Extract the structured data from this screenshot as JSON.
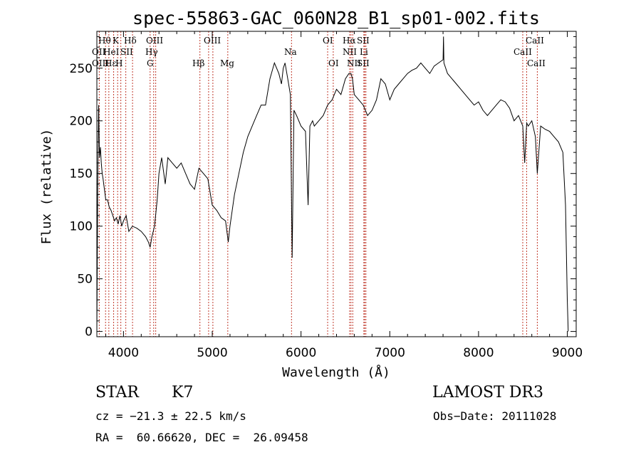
{
  "chart_data": {
    "type": "line",
    "title": "spec-55863-GAC_060N28_B1_sp01-002.fits",
    "xlabel": "Wavelength (Å)",
    "ylabel": "Flux (relative)",
    "xlim": [
      3700,
      9100
    ],
    "ylim": [
      -5,
      285
    ],
    "xticks": [
      4000,
      5000,
      6000,
      7000,
      8000,
      9000
    ],
    "yticks": [
      0,
      50,
      100,
      150,
      200,
      250
    ],
    "grid": false,
    "series": [
      {
        "x": [
          3700,
          3710,
          3720,
          3730,
          3740,
          3750,
          3760,
          3770,
          3780,
          3790,
          3800,
          3820,
          3840,
          3860,
          3880,
          3900,
          3920,
          3940,
          3960,
          3980,
          4000,
          4030,
          4060,
          4100,
          4150,
          4200,
          4250,
          4280,
          4300,
          4320,
          4350,
          4380,
          4400,
          4430,
          4470,
          4500,
          4550,
          4600,
          4650,
          4700,
          4750,
          4800,
          4850,
          4900,
          4950,
          5000,
          5050,
          5100,
          5150,
          5180,
          5200,
          5250,
          5300,
          5350,
          5400,
          5450,
          5500,
          5550,
          5600,
          5650,
          5700,
          5750,
          5780,
          5800,
          5820,
          5850,
          5880,
          5900,
          5920,
          5950,
          6000,
          6050,
          6080,
          6100,
          6130,
          6150,
          6200,
          6250,
          6300,
          6350,
          6400,
          6450,
          6500,
          6540,
          6563,
          6580,
          6600,
          6650,
          6700,
          6750,
          6800,
          6850,
          6900,
          6950,
          7000,
          7050,
          7100,
          7150,
          7200,
          7250,
          7300,
          7350,
          7400,
          7450,
          7500,
          7550,
          7600,
          7605,
          7610,
          7650,
          7700,
          7750,
          7800,
          7850,
          7900,
          7950,
          8000,
          8050,
          8100,
          8150,
          8200,
          8250,
          8300,
          8350,
          8400,
          8450,
          8498,
          8520,
          8542,
          8560,
          8600,
          8640,
          8662,
          8700,
          8750,
          8800,
          8850,
          8900,
          8950,
          8980,
          9000,
          9010
        ],
        "y": [
          0,
          140,
          215,
          165,
          175,
          160,
          150,
          145,
          138,
          132,
          125,
          125,
          118,
          115,
          110,
          105,
          108,
          102,
          110,
          100,
          105,
          110,
          95,
          100,
          98,
          95,
          90,
          85,
          80,
          90,
          100,
          125,
          150,
          165,
          140,
          165,
          160,
          155,
          160,
          150,
          140,
          135,
          155,
          150,
          145,
          120,
          115,
          108,
          105,
          85,
          100,
          130,
          150,
          170,
          185,
          195,
          205,
          215,
          215,
          240,
          255,
          245,
          235,
          250,
          255,
          240,
          225,
          70,
          210,
          205,
          195,
          190,
          120,
          195,
          200,
          195,
          200,
          205,
          215,
          220,
          230,
          225,
          240,
          245,
          245,
          240,
          225,
          220,
          215,
          205,
          210,
          220,
          240,
          235,
          220,
          230,
          235,
          240,
          245,
          248,
          250,
          255,
          250,
          245,
          252,
          255,
          258,
          280,
          255,
          245,
          240,
          235,
          230,
          225,
          220,
          215,
          218,
          210,
          205,
          210,
          215,
          220,
          218,
          212,
          200,
          205,
          195,
          160,
          198,
          195,
          200,
          185,
          150,
          195,
          192,
          190,
          185,
          180,
          170,
          120,
          30,
          0
        ]
      }
    ],
    "annotations": [
      "Hθ",
      "K",
      "Hδ",
      "OIII",
      "OII",
      "HeI",
      "SII",
      "Hγ",
      "OIII",
      "Hε",
      "H",
      "G",
      "Hβ",
      "OIII",
      "Mg",
      "Na",
      "OI",
      "OI",
      "Hα",
      "SII",
      "NII",
      "Li",
      "NII",
      "SII",
      "CaII",
      "CaII",
      "CaII"
    ],
    "footer": {
      "object_class": "STAR",
      "subclass": "K7",
      "survey": "LAMOST DR3",
      "cz": "cz = −21.3 ± 22.5 km/s",
      "obs_date": "Obs−Date: 20111028",
      "coords": "RA =  60.66620, DEC =  26.09458"
    }
  },
  "colors": {
    "line": "#000000",
    "marker_lines": "#c0392b",
    "background": "#ffffff"
  }
}
